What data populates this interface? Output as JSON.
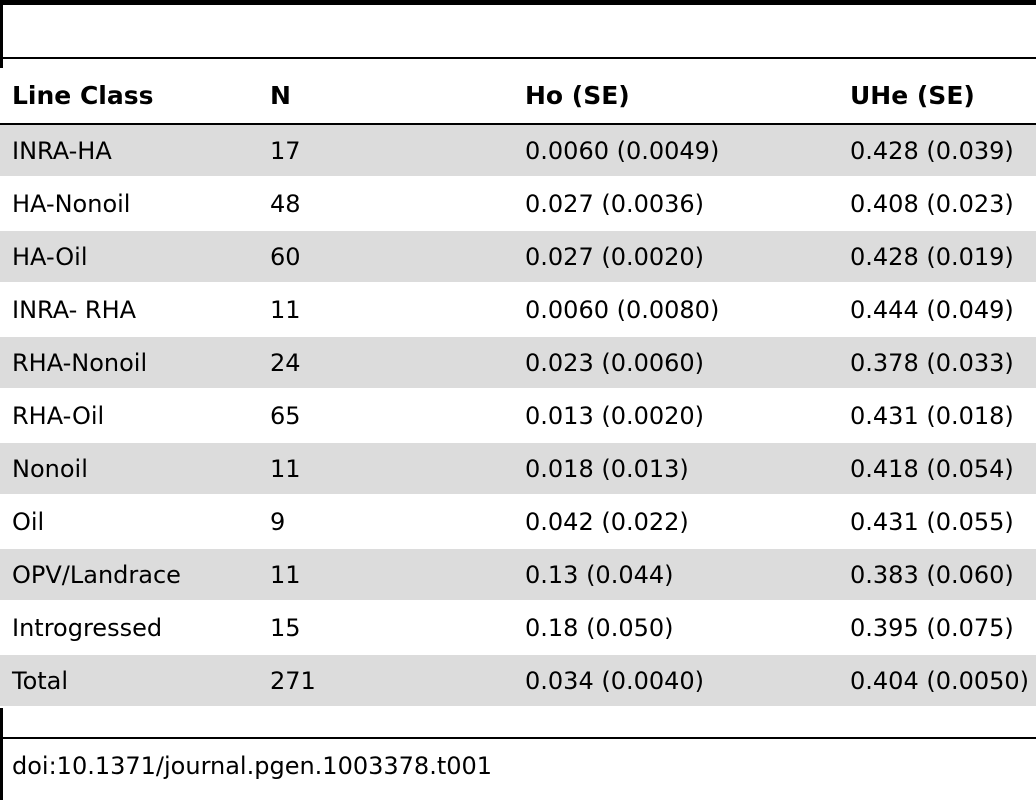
{
  "table": {
    "headers": [
      "Line Class",
      "N",
      "Ho (SE)",
      "UHe (SE)"
    ],
    "rows": [
      [
        "INRA-HA",
        "17",
        "0.0060 (0.0049)",
        "0.428 (0.039)"
      ],
      [
        "HA-Nonoil",
        "48",
        "0.027 (0.0036)",
        "0.408 (0.023)"
      ],
      [
        "HA-Oil",
        "60",
        "0.027 (0.0020)",
        "0.428 (0.019)"
      ],
      [
        "INRA- RHA",
        "11",
        "0.0060 (0.0080)",
        "0.444 (0.049)"
      ],
      [
        "RHA-Nonoil",
        "24",
        "0.023 (0.0060)",
        "0.378 (0.033)"
      ],
      [
        "RHA-Oil",
        "65",
        "0.013 (0.0020)",
        "0.431 (0.018)"
      ],
      [
        "Nonoil",
        "11",
        "0.018 (0.013)",
        "0.418 (0.054)"
      ],
      [
        "Oil",
        "9",
        "0.042 (0.022)",
        "0.431 (0.055)"
      ],
      [
        "OPV/Landrace",
        "11",
        "0.13 (0.044)",
        "0.383 (0.060)"
      ],
      [
        "Introgressed",
        "15",
        "0.18 (0.050)",
        "0.395 (0.075)"
      ],
      [
        "Total",
        "271",
        "0.034 (0.0040)",
        "0.404 (0.0050)"
      ]
    ]
  },
  "footer": {
    "doi": "doi:10.1371/journal.pgen.1003378.t001"
  },
  "colors": {
    "row_shade": "#dcdcdc",
    "rule": "#000000"
  }
}
